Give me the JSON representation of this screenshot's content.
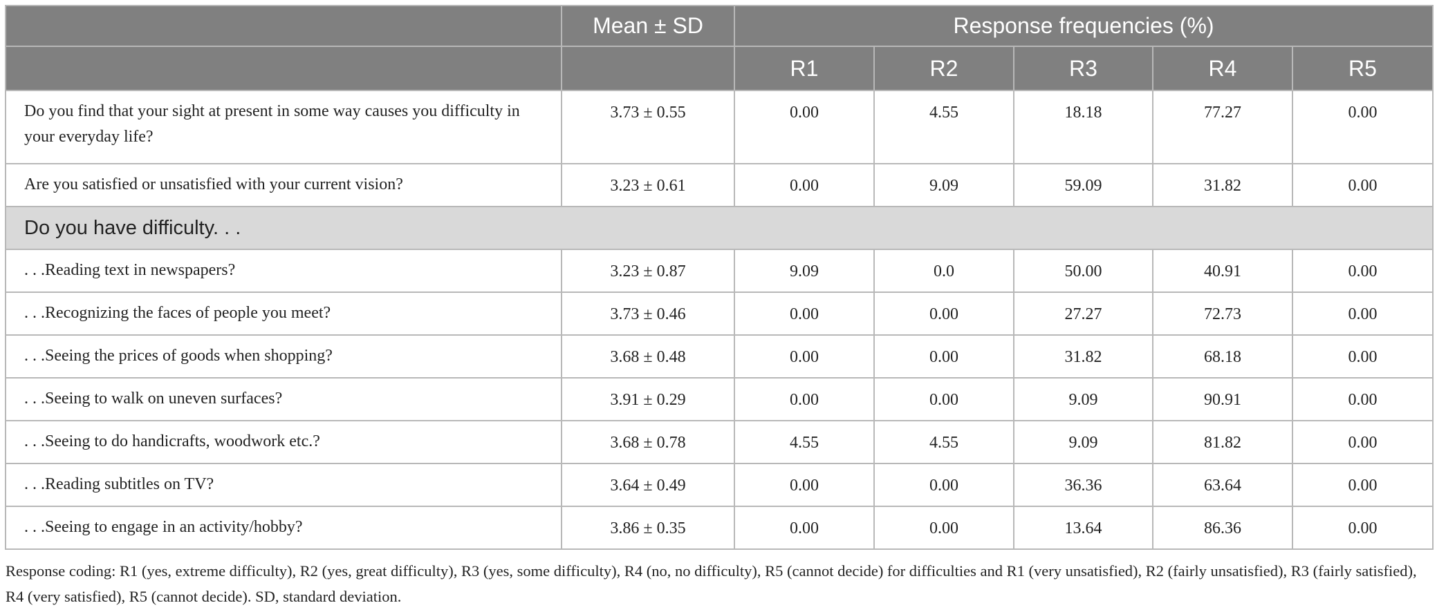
{
  "table": {
    "header": {
      "mean_sd": "Mean ± SD",
      "response": "Response frequencies (%)",
      "columns": [
        "R1",
        "R2",
        "R3",
        "R4",
        "R5"
      ]
    },
    "top_rows": [
      {
        "question": "Do you find that your sight at present in some way causes you difficulty in your everyday life?",
        "mean_sd": "3.73 ± 0.55",
        "values": [
          "0.00",
          "4.55",
          "18.18",
          "77.27",
          "0.00"
        ]
      },
      {
        "question": "Are you satisfied or unsatisfied with your current vision?",
        "mean_sd": "3.23 ± 0.61",
        "values": [
          "0.00",
          "9.09",
          "59.09",
          "31.82",
          "0.00"
        ]
      }
    ],
    "section": "Do you have difficulty. . .",
    "section_rows": [
      {
        "question": ". . .Reading text in newspapers?",
        "mean_sd": "3.23 ± 0.87",
        "values": [
          "9.09",
          "0.0",
          "50.00",
          "40.91",
          "0.00"
        ]
      },
      {
        "question": ". . .Recognizing the faces of people you meet?",
        "mean_sd": "3.73 ± 0.46",
        "values": [
          "0.00",
          "0.00",
          "27.27",
          "72.73",
          "0.00"
        ]
      },
      {
        "question": ". . .Seeing the prices of goods when shopping?",
        "mean_sd": "3.68 ± 0.48",
        "values": [
          "0.00",
          "0.00",
          "31.82",
          "68.18",
          "0.00"
        ]
      },
      {
        "question": ". . .Seeing to walk on uneven surfaces?",
        "mean_sd": "3.91 ± 0.29",
        "values": [
          "0.00",
          "0.00",
          "9.09",
          "90.91",
          "0.00"
        ]
      },
      {
        "question": ". . .Seeing to do handicrafts, woodwork etc.?",
        "mean_sd": "3.68 ± 0.78",
        "values": [
          "4.55",
          "4.55",
          "9.09",
          "81.82",
          "0.00"
        ]
      },
      {
        "question": ". . .Reading subtitles on TV?",
        "mean_sd": "3.64 ± 0.49",
        "values": [
          "0.00",
          "0.00",
          "36.36",
          "63.64",
          "0.00"
        ]
      },
      {
        "question": ". . .Seeing to engage in an activity/hobby?",
        "mean_sd": "3.86 ± 0.35",
        "values": [
          "0.00",
          "0.00",
          "13.64",
          "86.36",
          "0.00"
        ]
      }
    ]
  },
  "footnote": "Response coding: R1 (yes, extreme difficulty), R2 (yes, great difficulty), R3 (yes, some difficulty), R4 (no, no difficulty), R5 (cannot decide) for difficulties and R1 (very unsatisfied), R2 (fairly unsatisfied), R3 (fairly satisfied), R4 (very satisfied), R5 (cannot decide). SD, standard deviation."
}
